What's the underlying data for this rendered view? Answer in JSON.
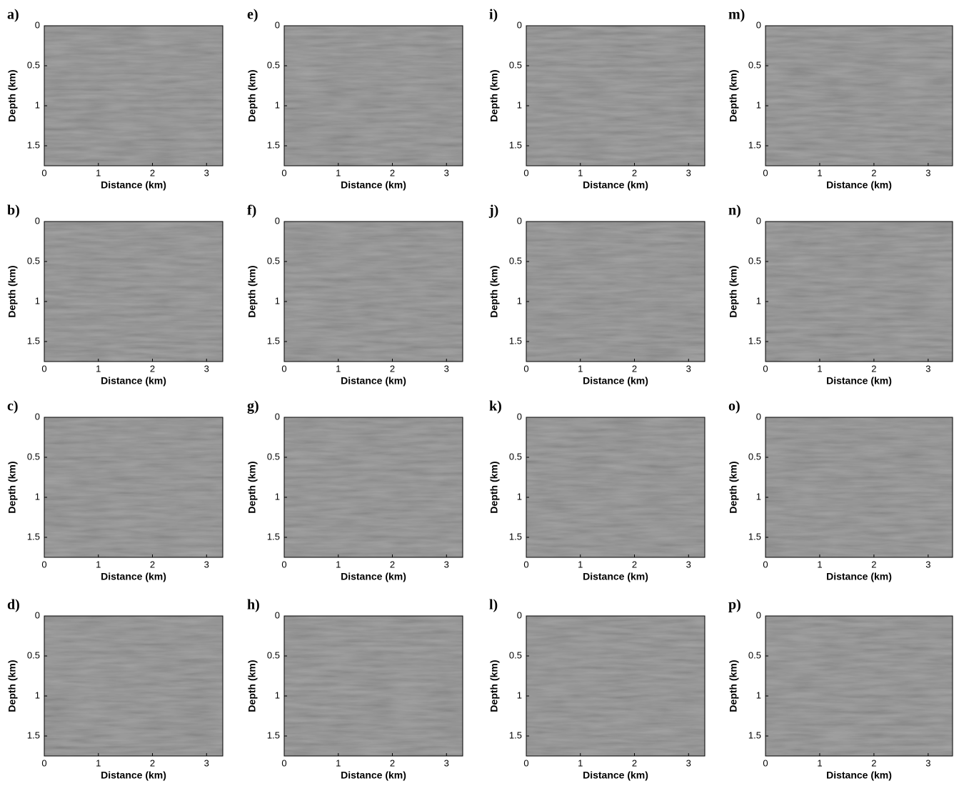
{
  "chart_data": [
    {
      "type": "image",
      "title": "a)",
      "xlabel": "Distance (km)",
      "ylabel": "Depth (km)",
      "xlim": [
        0,
        3.3
      ],
      "ylim": [
        0,
        1.75
      ],
      "xticks": [
        0,
        1,
        2,
        3
      ],
      "yticks": [
        0,
        0.5,
        1,
        1.5
      ]
    },
    {
      "type": "image",
      "title": "b)",
      "xlabel": "Distance (km)",
      "ylabel": "Depth (km)",
      "xlim": [
        0,
        3.3
      ],
      "ylim": [
        0,
        1.75
      ],
      "xticks": [
        0,
        1,
        2,
        3
      ],
      "yticks": [
        0,
        0.5,
        1,
        1.5
      ]
    },
    {
      "type": "image",
      "title": "c)",
      "xlabel": "Distance (km)",
      "ylabel": "Depth (km)",
      "xlim": [
        0,
        3.3
      ],
      "ylim": [
        0,
        1.75
      ],
      "xticks": [
        0,
        1,
        2,
        3
      ],
      "yticks": [
        0,
        0.5,
        1,
        1.5
      ]
    },
    {
      "type": "image",
      "title": "d)",
      "xlabel": "Distance (km)",
      "ylabel": "Depth (km)",
      "xlim": [
        0,
        3.3
      ],
      "ylim": [
        0,
        1.75
      ],
      "xticks": [
        0,
        1,
        2,
        3
      ],
      "yticks": [
        0,
        0.5,
        1,
        1.5
      ]
    },
    {
      "type": "image",
      "title": "e)",
      "xlabel": "Distance (km)",
      "ylabel": "Depth (km)",
      "xlim": [
        0,
        3.3
      ],
      "ylim": [
        0,
        1.75
      ],
      "xticks": [
        0,
        1,
        2,
        3
      ],
      "yticks": [
        0,
        0.5,
        1,
        1.5
      ]
    },
    {
      "type": "image",
      "title": "f)",
      "xlabel": "Distance (km)",
      "ylabel": "Depth (km)",
      "xlim": [
        0,
        3.3
      ],
      "ylim": [
        0,
        1.75
      ],
      "xticks": [
        0,
        1,
        2,
        3
      ],
      "yticks": [
        0,
        0.5,
        1,
        1.5
      ]
    },
    {
      "type": "image",
      "title": "g)",
      "xlabel": "Distance (km)",
      "ylabel": "Depth (km)",
      "xlim": [
        0,
        3.3
      ],
      "ylim": [
        0,
        1.75
      ],
      "xticks": [
        0,
        1,
        2,
        3
      ],
      "yticks": [
        0,
        0.5,
        1,
        1.5
      ]
    },
    {
      "type": "image",
      "title": "h)",
      "xlabel": "Distance (km)",
      "ylabel": "Depth (km)",
      "xlim": [
        0,
        3.3
      ],
      "ylim": [
        0,
        1.75
      ],
      "xticks": [
        0,
        1,
        2,
        3
      ],
      "yticks": [
        0,
        0.5,
        1,
        1.5
      ]
    },
    {
      "type": "image",
      "title": "i)",
      "xlabel": "Distance (km)",
      "ylabel": "Depth (km)",
      "xlim": [
        0,
        3.3
      ],
      "ylim": [
        0,
        1.75
      ],
      "xticks": [
        0,
        1,
        2,
        3
      ],
      "yticks": [
        0,
        0.5,
        1,
        1.5
      ]
    },
    {
      "type": "image",
      "title": "j)",
      "xlabel": "Distance (km)",
      "ylabel": "Depth (km)",
      "xlim": [
        0,
        3.3
      ],
      "ylim": [
        0,
        1.75
      ],
      "xticks": [
        0,
        1,
        2,
        3
      ],
      "yticks": [
        0,
        0.5,
        1,
        1.5
      ]
    },
    {
      "type": "image",
      "title": "k)",
      "xlabel": "Distance (km)",
      "ylabel": "Depth (km)",
      "xlim": [
        0,
        3.3
      ],
      "ylim": [
        0,
        1.75
      ],
      "xticks": [
        0,
        1,
        2,
        3
      ],
      "yticks": [
        0,
        0.5,
        1,
        1.5
      ]
    },
    {
      "type": "image",
      "title": "l)",
      "xlabel": "Distance (km)",
      "ylabel": "Depth (km)",
      "xlim": [
        0,
        3.3
      ],
      "ylim": [
        0,
        1.75
      ],
      "xticks": [
        0,
        1,
        2,
        3
      ],
      "yticks": [
        0,
        0.5,
        1,
        1.5
      ]
    },
    {
      "type": "image",
      "title": "m)",
      "xlabel": "Distance (km)",
      "ylabel": "Depth (km)",
      "xlim": [
        0,
        3.45
      ],
      "ylim": [
        0,
        1.75
      ],
      "xticks": [
        0,
        1,
        2,
        3
      ],
      "yticks": [
        0,
        0.5,
        1,
        1.5
      ]
    },
    {
      "type": "image",
      "title": "n)",
      "xlabel": "Distance (km)",
      "ylabel": "Depth (km)",
      "xlim": [
        0,
        3.45
      ],
      "ylim": [
        0,
        1.75
      ],
      "xticks": [
        0,
        1,
        2,
        3
      ],
      "yticks": [
        0,
        0.5,
        1,
        1.5
      ]
    },
    {
      "type": "image",
      "title": "o)",
      "xlabel": "Distance (km)",
      "ylabel": "Depth (km)",
      "xlim": [
        0,
        3.45
      ],
      "ylim": [
        0,
        1.75
      ],
      "xticks": [
        0,
        1,
        2,
        3
      ],
      "yticks": [
        0,
        0.5,
        1,
        1.5
      ]
    },
    {
      "type": "image",
      "title": "p)",
      "xlabel": "Distance (km)",
      "ylabel": "Depth (km)",
      "xlim": [
        0,
        3.45
      ],
      "ylim": [
        0,
        1.75
      ],
      "xticks": [
        0,
        1,
        2,
        3
      ],
      "yticks": [
        0,
        0.5,
        1,
        1.5
      ]
    }
  ]
}
